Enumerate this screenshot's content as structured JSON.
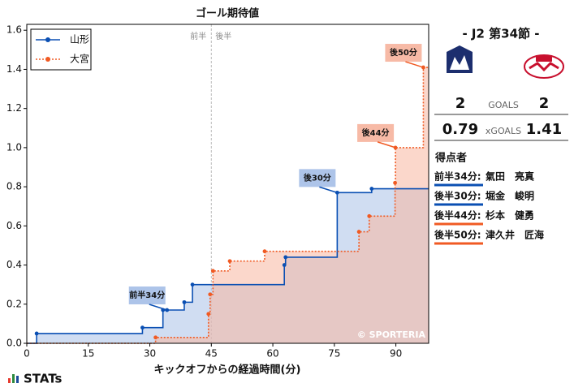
{
  "chart_data": {
    "type": "step",
    "title": "ゴール期待値",
    "x_label": "キックオフからの経過時間(分)",
    "xlim": [
      0,
      98
    ],
    "ylim": [
      0,
      1.63
    ],
    "xticks": [
      0,
      15,
      30,
      45,
      60,
      75,
      90
    ],
    "yticks": [
      {
        "value": 0,
        "label": "0.0"
      },
      0.2,
      0.4,
      0.6,
      0.8,
      {
        "value": 1,
        "label": "1.0"
      },
      1.2,
      1.4,
      1.6
    ],
    "halftime": 45,
    "half_labels": [
      "前半",
      "後半"
    ],
    "legend_corner": "upper left",
    "series": [
      {
        "name": "山形",
        "color": "#0a4fb3",
        "fill": "#a9c1e8",
        "x": [
          2.4,
          28.2,
          33.2,
          34.2,
          38.4,
          40.4,
          62.8,
          63.1,
          75.7,
          84.1
        ],
        "values": [
          0.05,
          0.08,
          0.17,
          0.17,
          0.21,
          0.3,
          0.4,
          0.44,
          0.77,
          0.79
        ]
      },
      {
        "name": "大宮",
        "color": "#f05a23",
        "fill": "#f7b6a1",
        "x": [
          31.4,
          44.3,
          44.7,
          45.4,
          49.5,
          58,
          81,
          83.5,
          89.8,
          89.9,
          96.7
        ],
        "values": [
          0.03,
          0.15,
          0.25,
          0.37,
          0.42,
          0.47,
          0.57,
          0.65,
          0.82,
          1.0,
          1.41
        ]
      }
    ],
    "annotations": [
      {
        "label": "前半34分",
        "series": 0,
        "point": 3
      },
      {
        "label": "後30分",
        "series": 0,
        "point": 8
      },
      {
        "label": "後44分",
        "series": 1,
        "point": 9
      },
      {
        "label": "後50分",
        "series": 1,
        "point": 10
      }
    ],
    "credit": "© SPORTERIA"
  },
  "brand": "STATs",
  "panel": {
    "match": "- J2 第34節 -",
    "goals_label": "GOALS",
    "goals": [
      "2",
      "2"
    ],
    "xgoals_label": "xGOALS",
    "xgoals": [
      "0.79",
      "1.41"
    ],
    "scorers_title": "得点者",
    "scorers": [
      {
        "time": "前半34分:",
        "name": "氣田　亮真",
        "color": "#0a4fb3"
      },
      {
        "time": "後半30分:",
        "name": "堀金　峻明",
        "color": "#0a4fb3"
      },
      {
        "time": "後半44分:",
        "name": "杉本　健勇",
        "color": "#f05a23"
      },
      {
        "time": "後半50分:",
        "name": "津久井　匠海",
        "color": "#f05a23"
      }
    ]
  }
}
